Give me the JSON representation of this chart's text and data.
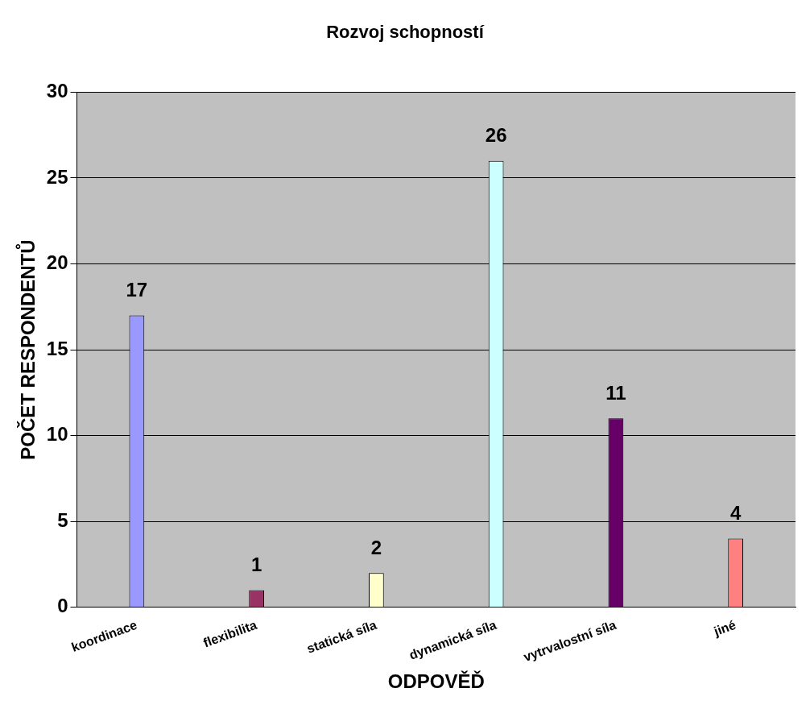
{
  "chart_data": {
    "type": "bar",
    "title": "Rozvoj schopností",
    "xlabel": "ODPOVĚĎ",
    "ylabel": "POČET RESPONDENTŮ",
    "categories": [
      "koordinace",
      "flexibilita",
      "statická síla",
      "dynamická síla",
      "vytrvalostní síla",
      "jiné"
    ],
    "values": [
      17,
      1,
      2,
      26,
      11,
      4
    ],
    "colors": [
      "#9999ff",
      "#993366",
      "#ffffcc",
      "#ccffff",
      "#660066",
      "#ff8080"
    ],
    "ylim": [
      0,
      30
    ],
    "yticks": [
      0,
      5,
      10,
      15,
      20,
      25,
      30
    ],
    "grid": "y",
    "data_labels": true,
    "legend": false
  }
}
